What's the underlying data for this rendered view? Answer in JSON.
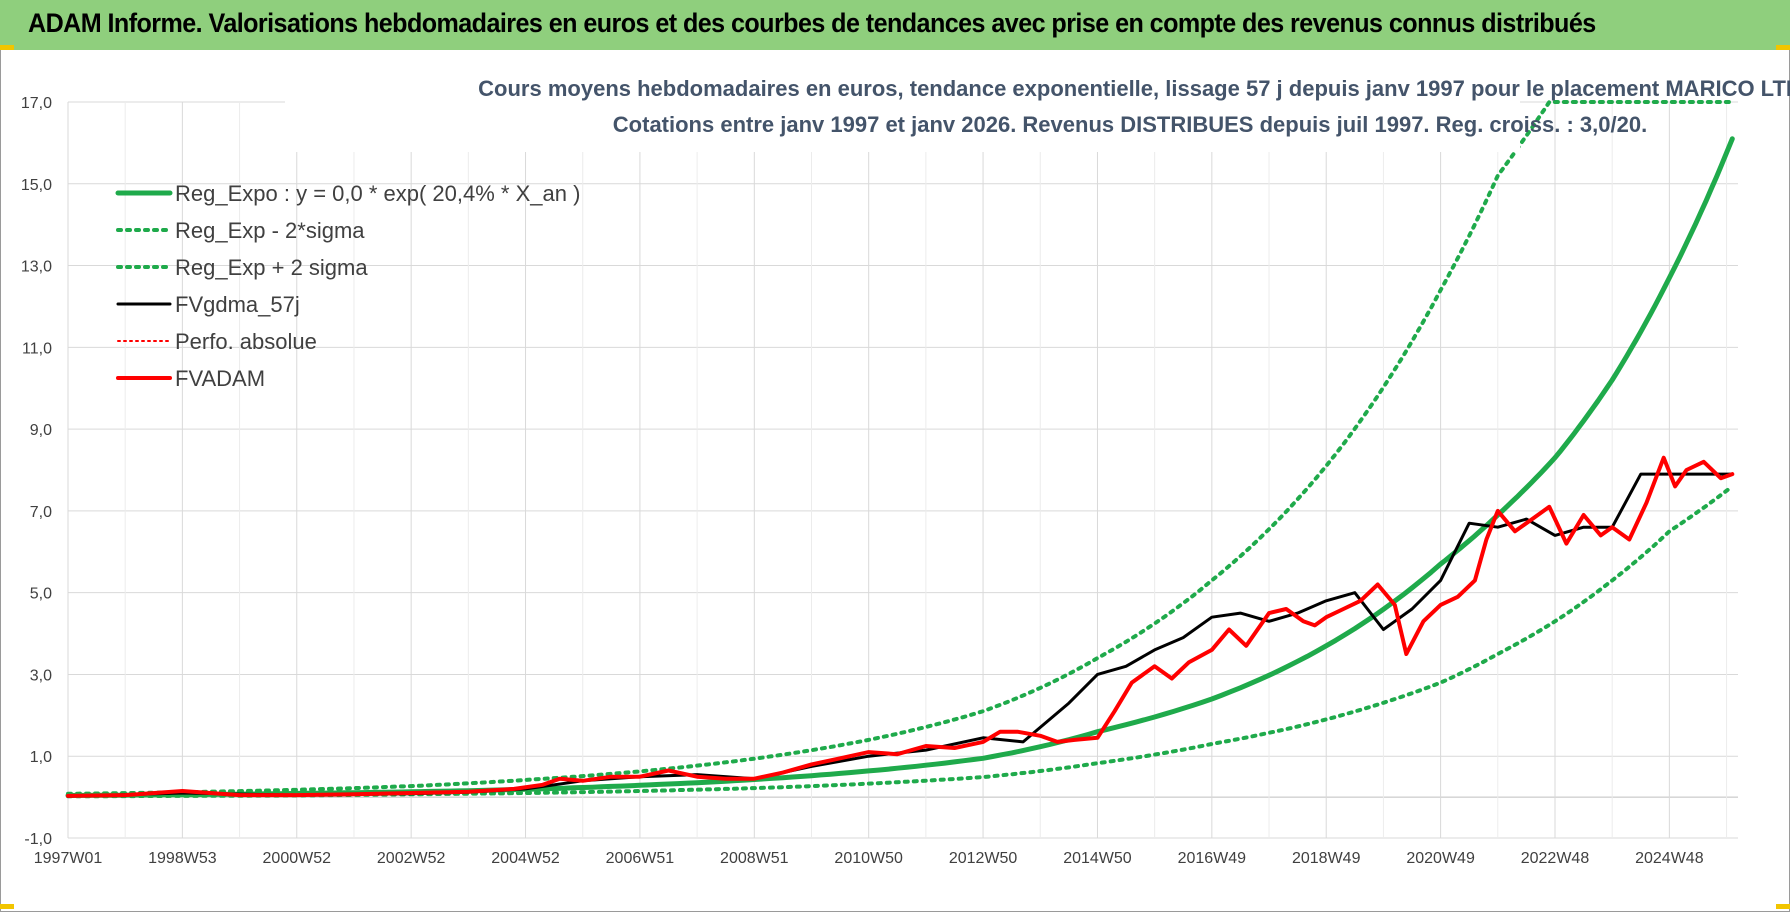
{
  "header": {
    "title": "ADAM Informe. Valorisations hebdomadaires en euros et des courbes de tendances avec prise en compte des revenus connus distribués"
  },
  "colors": {
    "header_bg": "#8fcf7d",
    "green": "#1faa4b",
    "black": "#000000",
    "red": "#ff0000",
    "title": "#44546a",
    "grid": "#d9d9d9"
  },
  "chart_data": {
    "type": "line",
    "title": "Cours moyens hebdomadaires en euros, tendance exponentielle, lissage 57 j depuis janv 1997  pour le placement MARICO LTD",
    "subtitle": "Cotations entre janv 1997 et janv 2026. Revenus DISTRIBUES depuis juil 1997. Reg. croiss. : 3,0/20.",
    "xlabel": "",
    "ylabel": "",
    "ylim": [
      -1,
      17
    ],
    "xlim": [
      1997.0,
      2026.2
    ],
    "y_ticks": [
      "-1,0",
      "1,0",
      "3,0",
      "5,0",
      "7,0",
      "9,0",
      "11,0",
      "13,0",
      "15,0",
      "17,0"
    ],
    "y_tick_values": [
      -1,
      1,
      3,
      5,
      7,
      9,
      11,
      13,
      15,
      17
    ],
    "x_ticks": [
      "1997W01",
      "1998W53",
      "2000W52",
      "2002W52",
      "2004W52",
      "2006W51",
      "2008W51",
      "2010W50",
      "2012W50",
      "2014W50",
      "2016W49",
      "2018W49",
      "2020W49",
      "2022W48",
      "2024W48"
    ],
    "x_tick_values": [
      1997.0,
      1999.0,
      2001.0,
      2003.0,
      2005.0,
      2007.0,
      2009.0,
      2011.0,
      2013.0,
      2015.0,
      2017.0,
      2019.0,
      2021.0,
      2023.0,
      2025.0
    ],
    "grid": true,
    "legend_position": "top-left",
    "series": [
      {
        "name": "Reg_Expo : y = 0,0 * exp( 20,4% *  X_an )",
        "style": "solid-green",
        "x": [
          1997,
          1999,
          2001,
          2003,
          2005,
          2007,
          2009,
          2011,
          2013,
          2015,
          2017,
          2019,
          2021,
          2022,
          2023,
          2024,
          2025,
          2026.1
        ],
        "y": [
          0.04,
          0.06,
          0.09,
          0.13,
          0.19,
          0.29,
          0.43,
          0.64,
          0.95,
          1.6,
          2.4,
          3.7,
          5.7,
          6.9,
          8.3,
          10.2,
          12.7,
          16.1
        ]
      },
      {
        "name": "Reg_Exp - 2*sigma",
        "style": "dotted-green",
        "x": [
          1997,
          1999,
          2001,
          2003,
          2005,
          2007,
          2009,
          2011,
          2013,
          2015,
          2017,
          2019,
          2021,
          2022,
          2023,
          2024,
          2025,
          2026.1
        ],
        "y": [
          0.02,
          0.03,
          0.04,
          0.07,
          0.1,
          0.15,
          0.22,
          0.33,
          0.49,
          0.83,
          1.3,
          1.9,
          2.8,
          3.5,
          4.3,
          5.3,
          6.5,
          7.6
        ]
      },
      {
        "name": "Reg_Exp + 2 sigma",
        "style": "dotted-green",
        "x": [
          1997,
          1999,
          2001,
          2003,
          2005,
          2007,
          2009,
          2011,
          2013,
          2015,
          2017,
          2019,
          2021,
          2022,
          2022.9,
          2026.1
        ],
        "y": [
          0.08,
          0.12,
          0.18,
          0.27,
          0.42,
          0.63,
          0.94,
          1.4,
          2.1,
          3.4,
          5.3,
          8.1,
          12.4,
          15.2,
          17.0,
          17.0
        ]
      },
      {
        "name": "FVgdma_57j",
        "style": "solid-black",
        "x": [
          1997,
          1999,
          2001,
          2003,
          2004,
          2005,
          2006,
          2007,
          2008,
          2009,
          2010,
          2011,
          2012,
          2013,
          2013.7,
          2014.5,
          2015,
          2015.5,
          2016,
          2016.5,
          2017,
          2017.5,
          2018,
          2018.5,
          2019,
          2019.5,
          2020,
          2020.5,
          2021,
          2021.5,
          2022,
          2022.5,
          2023,
          2023.5,
          2024,
          2024.5,
          2025,
          2025.5,
          2026.1
        ],
        "y": [
          0.02,
          0.1,
          0.05,
          0.08,
          0.12,
          0.2,
          0.4,
          0.5,
          0.55,
          0.45,
          0.75,
          1.0,
          1.15,
          1.45,
          1.35,
          2.3,
          3.0,
          3.2,
          3.6,
          3.9,
          4.4,
          4.5,
          4.3,
          4.5,
          4.8,
          5.0,
          4.1,
          4.6,
          5.3,
          6.7,
          6.6,
          6.8,
          6.4,
          6.6,
          6.6,
          7.9,
          7.9,
          7.9,
          7.9
        ]
      },
      {
        "name": "Perfo. absolue",
        "style": "dotted-red",
        "x": [
          1997,
          1999,
          2001,
          2003,
          2004,
          2005,
          2006,
          2007,
          2008,
          2009,
          2010,
          2011,
          2012,
          2013,
          2013.7,
          2014.5,
          2015,
          2015.5,
          2016,
          2016.5,
          2017,
          2017.5,
          2018,
          2018.5,
          2019,
          2019.5,
          2020,
          2020.5,
          2021,
          2021.5,
          2022,
          2022.5,
          2023,
          2023.5,
          2024,
          2024.5,
          2025,
          2025.5,
          2026.1
        ],
        "y": [
          0.02,
          0.1,
          0.05,
          0.08,
          0.12,
          0.2,
          0.4,
          0.5,
          0.55,
          0.45,
          0.75,
          1.0,
          1.15,
          1.45,
          1.35,
          2.3,
          3.0,
          3.2,
          3.6,
          3.9,
          4.4,
          4.5,
          4.3,
          4.5,
          4.8,
          5.0,
          4.1,
          4.6,
          5.3,
          6.7,
          6.6,
          6.8,
          6.4,
          6.6,
          6.6,
          7.9,
          7.9,
          7.9,
          7.9
        ]
      },
      {
        "name": "FVADAM",
        "style": "solid-red",
        "x": [
          1997,
          1998,
          1999,
          2000,
          2001,
          2002,
          2003,
          2004,
          2004.8,
          2005.3,
          2005.6,
          2006,
          2006.5,
          2007,
          2007.5,
          2008,
          2008.5,
          2009,
          2009.5,
          2010,
          2010.5,
          2011,
          2011.5,
          2012,
          2012.5,
          2013,
          2013.3,
          2013.6,
          2014,
          2014.3,
          2014.6,
          2015,
          2015.3,
          2015.6,
          2016,
          2016.3,
          2016.6,
          2017,
          2017.3,
          2017.6,
          2018,
          2018.3,
          2018.6,
          2018.8,
          2019,
          2019.3,
          2019.6,
          2019.9,
          2020.2,
          2020.4,
          2020.7,
          2021,
          2021.3,
          2021.6,
          2021.8,
          2022,
          2022.3,
          2022.6,
          2022.9,
          2023.2,
          2023.5,
          2023.8,
          2024,
          2024.3,
          2024.6,
          2024.9,
          2025.1,
          2025.3,
          2025.6,
          2025.9,
          2026.1
        ],
        "y": [
          0.03,
          0.05,
          0.15,
          0.05,
          0.05,
          0.07,
          0.1,
          0.13,
          0.2,
          0.3,
          0.45,
          0.4,
          0.5,
          0.5,
          0.65,
          0.5,
          0.45,
          0.45,
          0.6,
          0.8,
          0.95,
          1.1,
          1.05,
          1.25,
          1.2,
          1.35,
          1.6,
          1.6,
          1.5,
          1.35,
          1.4,
          1.45,
          2.1,
          2.8,
          3.2,
          2.9,
          3.3,
          3.6,
          4.1,
          3.7,
          4.5,
          4.6,
          4.3,
          4.2,
          4.4,
          4.6,
          4.8,
          5.2,
          4.7,
          3.5,
          4.3,
          4.7,
          4.9,
          5.3,
          6.3,
          7.0,
          6.5,
          6.8,
          7.1,
          6.2,
          6.9,
          6.4,
          6.6,
          6.3,
          7.2,
          8.3,
          7.6,
          8.0,
          8.2,
          7.8,
          7.9
        ]
      }
    ]
  }
}
